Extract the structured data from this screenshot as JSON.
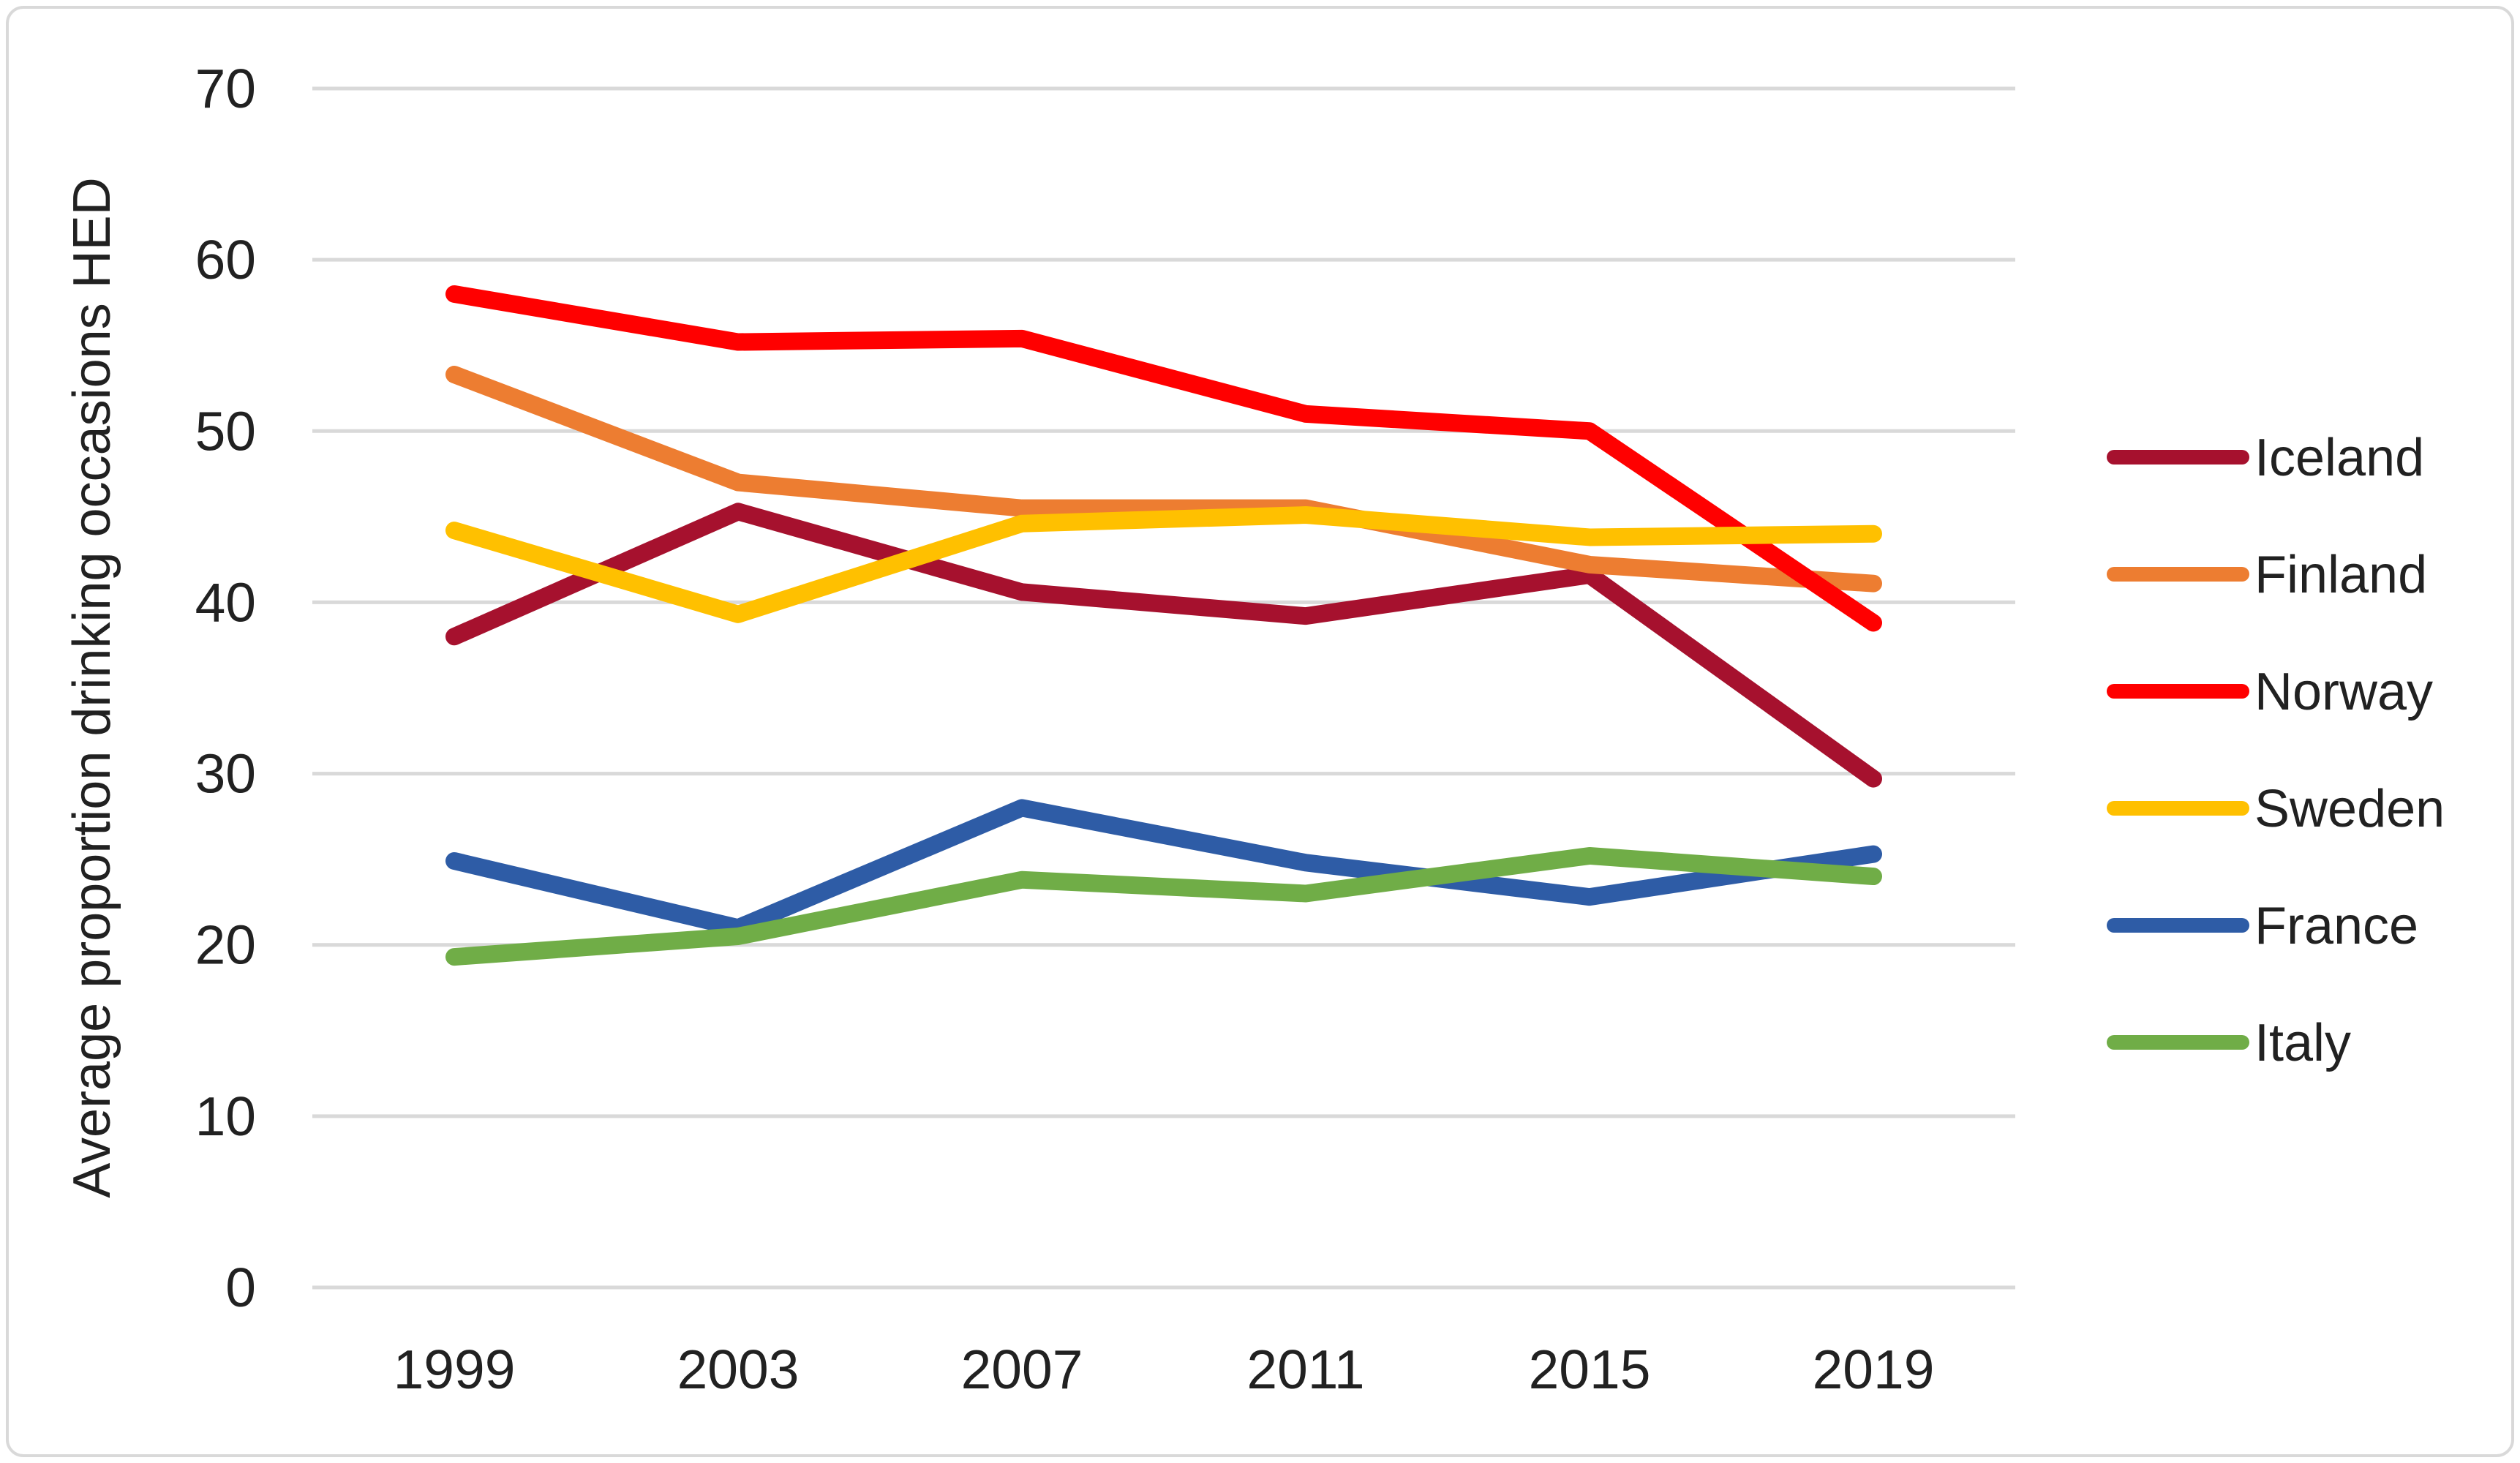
{
  "chart_data": {
    "type": "line",
    "title": "",
    "xlabel": "",
    "ylabel": "Average proportion drinking occasions HED",
    "categories": [
      "1999",
      "2003",
      "2007",
      "2011",
      "2015",
      "2019"
    ],
    "ylim": [
      0,
      70
    ],
    "yticks": [
      0,
      10,
      20,
      30,
      40,
      50,
      60,
      70
    ],
    "grid": "horizontal",
    "legend_position": "right",
    "series": [
      {
        "name": "Iceland",
        "color": "#A6112E",
        "values": [
          38.0,
          45.3,
          40.6,
          39.2,
          41.6,
          29.7
        ]
      },
      {
        "name": "Finland",
        "color": "#ED7D31",
        "values": [
          53.3,
          47.0,
          45.5,
          45.5,
          42.2,
          41.1
        ]
      },
      {
        "name": "Norway",
        "color": "#FF0000",
        "values": [
          58.0,
          55.2,
          55.4,
          51.0,
          50.0,
          38.8
        ]
      },
      {
        "name": "Sweden",
        "color": "#FFC000",
        "values": [
          44.2,
          39.3,
          44.6,
          45.1,
          43.8,
          44.0
        ]
      },
      {
        "name": "France",
        "color": "#2E5CA6",
        "values": [
          24.9,
          21.0,
          28.0,
          24.8,
          22.8,
          25.3
        ]
      },
      {
        "name": "Italy",
        "color": "#70AD47",
        "values": [
          19.3,
          20.5,
          23.8,
          23.0,
          25.2,
          24.0
        ]
      }
    ]
  },
  "style": {
    "background_color": "#FFFFFF",
    "gridline_color": "#D9D9D9",
    "border_color": "#D9D9D9",
    "text_color": "#212121",
    "series_line_width": 24,
    "legend_line_width": 20,
    "gridline_width": 5
  }
}
